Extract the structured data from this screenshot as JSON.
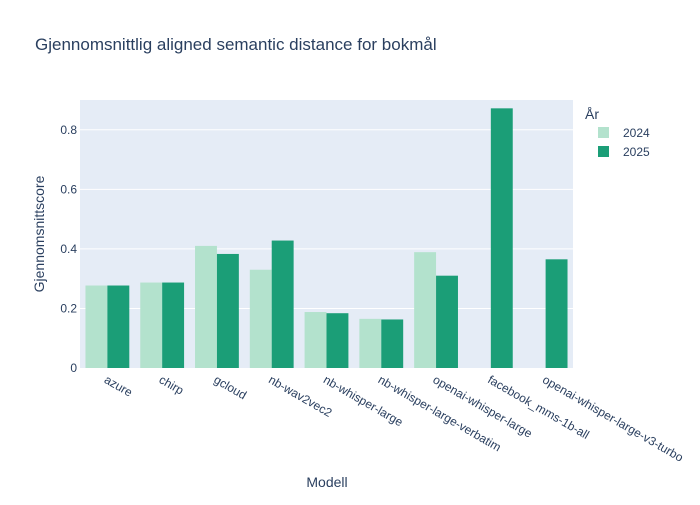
{
  "chart_data": {
    "type": "bar",
    "title": "Gjennomsnittlig aligned semantic distance for bokmål",
    "xlabel": "Modell",
    "ylabel": "Gjennomsnittscore",
    "ylim": [
      0,
      0.9
    ],
    "yticks": [
      0,
      0.2,
      0.4,
      0.6,
      0.8
    ],
    "ytick_labels": [
      "0",
      "0.2",
      "0.4",
      "0.6",
      "0.8"
    ],
    "grid": true,
    "legend": {
      "title": "År",
      "placement": "top-right"
    },
    "categories": [
      "azure",
      "chirp",
      "gcloud",
      "nb-wav2vec2",
      "nb-whisper-large",
      "nb-whisper-large-verbatim",
      "openai-whisper-large",
      "facebook_mms-1b-all",
      "openai-whisper-large-v3-turbo"
    ],
    "series": [
      {
        "name": "2024",
        "color": "#b3e2cd",
        "values": [
          0.277,
          0.287,
          0.41,
          0.33,
          0.188,
          0.165,
          0.389,
          null,
          null
        ]
      },
      {
        "name": "2025",
        "color": "#1b9e77",
        "values": [
          0.277,
          0.287,
          0.383,
          0.428,
          0.184,
          0.163,
          0.31,
          0.872,
          0.365
        ]
      }
    ],
    "plot_background": "#e5ecf6",
    "text_color": "#2a3f5f"
  }
}
